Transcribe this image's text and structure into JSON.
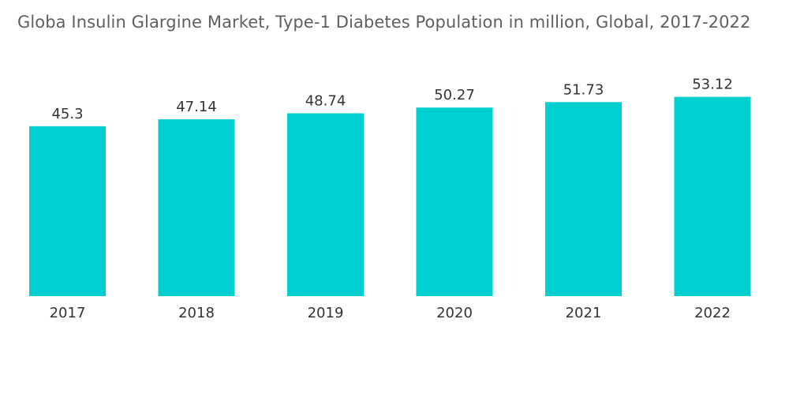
{
  "chart_data": {
    "type": "bar",
    "title": "Globa Insulin Glargine Market, Type-1 Diabetes Population in million, Global, 2017-2022",
    "categories": [
      "2017",
      "2018",
      "2019",
      "2020",
      "2021",
      "2022"
    ],
    "values": [
      45.3,
      47.14,
      48.74,
      50.27,
      51.73,
      53.12
    ],
    "value_labels": [
      "45.3",
      "47.14",
      "48.74",
      "50.27",
      "51.73",
      "53.12"
    ],
    "xlabel": "",
    "ylabel": "",
    "ylim": [
      0,
      60
    ],
    "grid": false,
    "legend": "none",
    "colors": {
      "bar": "#00cfd1",
      "title": "#5f5f5f",
      "text": "#333333"
    }
  }
}
